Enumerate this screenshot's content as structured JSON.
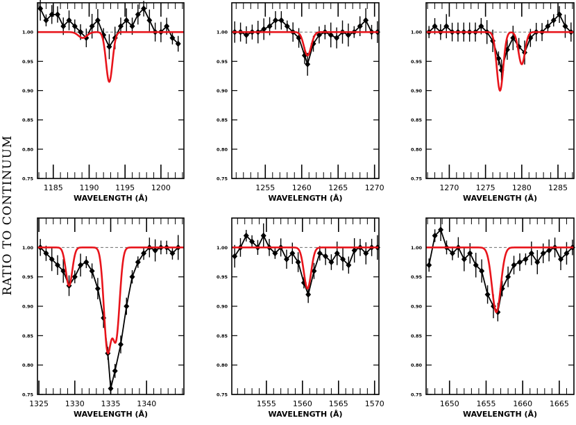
{
  "figure": {
    "ylabel": "RATIO TO CONTINUUM"
  },
  "chart_data": [
    {
      "type": "line",
      "xlabel": "WAVELENGTH (Å)",
      "xlim": [
        1182.8,
        1203.2
      ],
      "ylim": [
        0.75,
        1.05
      ],
      "xticks": [
        1185,
        1190,
        1195,
        1200
      ],
      "yticks": [
        0.75,
        0.8,
        0.85,
        0.9,
        0.95,
        1.0
      ],
      "continuum": 1.0,
      "data": [
        [
          1183.2,
          1.04
        ],
        [
          1184.0,
          1.02
        ],
        [
          1184.8,
          1.03
        ],
        [
          1185.6,
          1.03
        ],
        [
          1186.4,
          1.01
        ],
        [
          1187.2,
          1.02
        ],
        [
          1188.0,
          1.01
        ],
        [
          1188.8,
          1.0
        ],
        [
          1189.6,
          0.99
        ],
        [
          1190.4,
          1.01
        ],
        [
          1191.2,
          1.02
        ],
        [
          1192.0,
          0.995
        ],
        [
          1192.8,
          0.975
        ],
        [
          1193.6,
          0.99
        ],
        [
          1194.4,
          1.01
        ],
        [
          1195.2,
          1.02
        ],
        [
          1196.0,
          1.01
        ],
        [
          1196.8,
          1.03
        ],
        [
          1197.6,
          1.04
        ],
        [
          1198.4,
          1.02
        ],
        [
          1199.2,
          1.0
        ],
        [
          1200.0,
          1.0
        ],
        [
          1200.8,
          1.01
        ],
        [
          1201.6,
          0.99
        ],
        [
          1202.4,
          0.98
        ]
      ],
      "model_lines": [
        {
          "center": 1189.1,
          "depth": 0.01,
          "width": 0.6
        },
        {
          "center": 1192.8,
          "depth": 0.085,
          "width": 0.45
        }
      ]
    },
    {
      "type": "line",
      "xlabel": "WAVELENGTH (Å)",
      "xlim": [
        1250.4,
        1270.6
      ],
      "ylim": [
        0.75,
        1.05
      ],
      "xticks": [
        1255,
        1260,
        1265,
        1270
      ],
      "yticks": [
        0.75,
        0.8,
        0.85,
        0.9,
        0.95,
        1.0
      ],
      "continuum": 1.0,
      "data": [
        [
          1250.8,
          1.0
        ],
        [
          1251.6,
          1.0
        ],
        [
          1252.4,
          0.995
        ],
        [
          1253.2,
          1.0
        ],
        [
          1254.0,
          1.0
        ],
        [
          1254.8,
          1.005
        ],
        [
          1255.6,
          1.01
        ],
        [
          1256.4,
          1.02
        ],
        [
          1257.2,
          1.02
        ],
        [
          1258.0,
          1.01
        ],
        [
          1258.8,
          1.0
        ],
        [
          1259.6,
          0.99
        ],
        [
          1260.4,
          0.96
        ],
        [
          1260.8,
          0.945
        ],
        [
          1261.6,
          0.98
        ],
        [
          1262.4,
          0.995
        ],
        [
          1263.2,
          1.0
        ],
        [
          1264.0,
          0.995
        ],
        [
          1264.8,
          0.99
        ],
        [
          1265.6,
          1.0
        ],
        [
          1266.4,
          0.995
        ],
        [
          1267.2,
          1.0
        ],
        [
          1268.0,
          1.01
        ],
        [
          1268.8,
          1.02
        ],
        [
          1269.6,
          1.0
        ],
        [
          1270.4,
          1.0
        ]
      ],
      "model_lines": [
        {
          "center": 1260.8,
          "depth": 0.04,
          "width": 0.5
        }
      ]
    },
    {
      "type": "line",
      "xlabel": "WAVELENGTH (Å)",
      "xlim": [
        1266.8,
        1287.2
      ],
      "ylim": [
        0.75,
        1.05
      ],
      "xticks": [
        1270,
        1275,
        1280,
        1285
      ],
      "yticks": [
        0.75,
        0.8,
        0.85,
        0.9,
        0.95,
        1.0
      ],
      "continuum": 1.0,
      "data": [
        [
          1267.2,
          1.0
        ],
        [
          1268.0,
          1.01
        ],
        [
          1268.8,
          1.0
        ],
        [
          1269.6,
          1.01
        ],
        [
          1270.4,
          1.0
        ],
        [
          1271.2,
          1.0
        ],
        [
          1272.0,
          1.0
        ],
        [
          1272.8,
          1.0
        ],
        [
          1273.6,
          1.0
        ],
        [
          1274.4,
          1.01
        ],
        [
          1275.2,
          1.0
        ],
        [
          1276.0,
          0.985
        ],
        [
          1276.8,
          0.955
        ],
        [
          1277.2,
          0.935
        ],
        [
          1278.0,
          0.97
        ],
        [
          1278.8,
          0.99
        ],
        [
          1279.6,
          0.975
        ],
        [
          1280.4,
          0.965
        ],
        [
          1281.2,
          0.99
        ],
        [
          1282.0,
          1.0
        ],
        [
          1282.8,
          1.0
        ],
        [
          1283.6,
          1.01
        ],
        [
          1284.4,
          1.02
        ],
        [
          1285.2,
          1.03
        ],
        [
          1286.0,
          1.01
        ],
        [
          1286.8,
          1.0
        ]
      ],
      "model_lines": [
        {
          "center": 1277.0,
          "depth": 0.1,
          "width": 0.45
        },
        {
          "center": 1280.0,
          "depth": 0.055,
          "width": 0.45
        }
      ]
    },
    {
      "type": "line",
      "xlabel": "WAVELENGTH (Å)",
      "xlim": [
        1324.8,
        1345.2
      ],
      "ylim": [
        0.75,
        1.05
      ],
      "xticks": [
        1325,
        1330,
        1335,
        1340
      ],
      "yticks": [
        0.75,
        0.8,
        0.85,
        0.9,
        0.95,
        1.0
      ],
      "continuum": 1.0,
      "data": [
        [
          1325.2,
          1.0
        ],
        [
          1326.0,
          0.99
        ],
        [
          1326.8,
          0.98
        ],
        [
          1327.6,
          0.97
        ],
        [
          1328.4,
          0.96
        ],
        [
          1329.2,
          0.935
        ],
        [
          1330.0,
          0.95
        ],
        [
          1330.8,
          0.97
        ],
        [
          1331.6,
          0.975
        ],
        [
          1332.4,
          0.96
        ],
        [
          1333.2,
          0.93
        ],
        [
          1334.0,
          0.88
        ],
        [
          1334.6,
          0.82
        ],
        [
          1335.0,
          0.76
        ],
        [
          1335.6,
          0.79
        ],
        [
          1336.4,
          0.835
        ],
        [
          1337.2,
          0.9
        ],
        [
          1338.0,
          0.95
        ],
        [
          1338.8,
          0.975
        ],
        [
          1339.6,
          0.99
        ],
        [
          1340.4,
          1.0
        ],
        [
          1341.2,
          0.995
        ],
        [
          1342.0,
          1.0
        ],
        [
          1342.8,
          1.0
        ],
        [
          1343.6,
          0.99
        ],
        [
          1344.4,
          1.0
        ]
      ],
      "model_lines": [
        {
          "center": 1329.2,
          "depth": 0.065,
          "width": 0.45
        },
        {
          "center": 1334.55,
          "depth": 0.17,
          "width": 0.5
        },
        {
          "center": 1335.75,
          "depth": 0.15,
          "width": 0.5
        }
      ]
    },
    {
      "type": "line",
      "xlabel": "WAVELENGTH (Å)",
      "xlim": [
        1550.2,
        1570.6
      ],
      "ylim": [
        0.75,
        1.05
      ],
      "xticks": [
        1555,
        1560,
        1565,
        1570
      ],
      "yticks": [
        0.75,
        0.8,
        0.85,
        0.9,
        0.95,
        1.0
      ],
      "continuum": 1.0,
      "data": [
        [
          1550.6,
          0.985
        ],
        [
          1551.4,
          1.0
        ],
        [
          1552.2,
          1.02
        ],
        [
          1553.0,
          1.01
        ],
        [
          1553.8,
          1.0
        ],
        [
          1554.6,
          1.02
        ],
        [
          1555.4,
          1.0
        ],
        [
          1556.2,
          0.99
        ],
        [
          1557.0,
          1.0
        ],
        [
          1557.8,
          0.98
        ],
        [
          1558.6,
          0.99
        ],
        [
          1559.4,
          0.975
        ],
        [
          1560.2,
          0.94
        ],
        [
          1560.8,
          0.92
        ],
        [
          1561.6,
          0.96
        ],
        [
          1562.4,
          0.99
        ],
        [
          1563.2,
          0.985
        ],
        [
          1564.0,
          0.975
        ],
        [
          1564.8,
          0.99
        ],
        [
          1565.6,
          0.98
        ],
        [
          1566.4,
          0.97
        ],
        [
          1567.2,
          0.995
        ],
        [
          1568.0,
          1.0
        ],
        [
          1568.8,
          0.99
        ],
        [
          1569.6,
          1.0
        ],
        [
          1570.4,
          1.0
        ]
      ],
      "model_lines": [
        {
          "center": 1560.7,
          "depth": 0.07,
          "width": 0.5
        }
      ]
    },
    {
      "type": "line",
      "xlabel": "WAVELENGTH (Å)",
      "xlim": [
        1646.8,
        1667.0
      ],
      "ylim": [
        0.75,
        1.05
      ],
      "xticks": [
        1650,
        1655,
        1660,
        1665
      ],
      "yticks": [
        0.75,
        0.8,
        0.85,
        0.9,
        0.95,
        1.0
      ],
      "continuum": 1.0,
      "data": [
        [
          1647.2,
          0.97
        ],
        [
          1648.0,
          1.02
        ],
        [
          1648.8,
          1.03
        ],
        [
          1649.6,
          1.0
        ],
        [
          1650.4,
          0.99
        ],
        [
          1651.2,
          1.0
        ],
        [
          1652.0,
          0.98
        ],
        [
          1652.8,
          0.99
        ],
        [
          1653.6,
          0.97
        ],
        [
          1654.4,
          0.96
        ],
        [
          1655.2,
          0.92
        ],
        [
          1656.0,
          0.9
        ],
        [
          1656.6,
          0.89
        ],
        [
          1657.2,
          0.93
        ],
        [
          1658.0,
          0.95
        ],
        [
          1658.8,
          0.97
        ],
        [
          1659.6,
          0.975
        ],
        [
          1660.4,
          0.98
        ],
        [
          1661.2,
          0.99
        ],
        [
          1662.0,
          0.975
        ],
        [
          1662.8,
          0.99
        ],
        [
          1663.6,
          0.995
        ],
        [
          1664.4,
          1.0
        ],
        [
          1665.2,
          0.98
        ],
        [
          1666.0,
          0.99
        ],
        [
          1666.8,
          1.0
        ]
      ],
      "model_lines": [
        {
          "center": 1656.4,
          "depth": 0.11,
          "width": 0.6
        }
      ]
    }
  ]
}
